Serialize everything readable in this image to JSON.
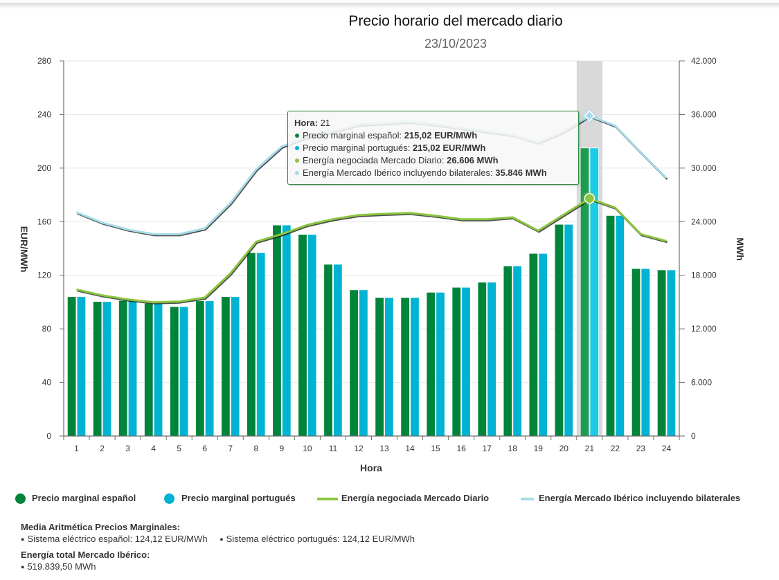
{
  "chart_data": {
    "type": "bar",
    "title": "Precio horario del mercado diario",
    "subtitle": "23/10/2023",
    "xlabel": "Hora",
    "ylabel": "EUR/MWh",
    "y2label": "MWh",
    "ylim": [
      0,
      280
    ],
    "y2lim": [
      0,
      42000
    ],
    "yticks": [
      0,
      40,
      80,
      120,
      160,
      200,
      240,
      280
    ],
    "ytick_labels": [
      "0",
      "40",
      "80",
      "120",
      "160",
      "200",
      "240",
      "280"
    ],
    "y2ticks": [
      0,
      6000,
      12000,
      18000,
      24000,
      30000,
      36000,
      42000
    ],
    "y2tick_labels": [
      "0",
      "6.000",
      "12.000",
      "18.000",
      "24.000",
      "30.000",
      "36.000",
      "42.000"
    ],
    "grid": true,
    "legend_position": "bottom-left",
    "highlighted_category": "21",
    "categories": [
      "1",
      "2",
      "3",
      "4",
      "5",
      "6",
      "7",
      "8",
      "9",
      "10",
      "11",
      "12",
      "13",
      "14",
      "15",
      "16",
      "17",
      "18",
      "19",
      "20",
      "21",
      "22",
      "23",
      "24"
    ],
    "series": [
      {
        "name": "Precio marginal español",
        "type": "bar",
        "axis": "left",
        "unit": "EUR/MWh",
        "color": "#00843a",
        "highlight_color": "#1d9b4f",
        "values": [
          104.0,
          100.4,
          101.2,
          99.1,
          96.6,
          100.9,
          104.0,
          136.9,
          157.5,
          150.5,
          128.2,
          109.1,
          103.4,
          103.4,
          107.3,
          111.0,
          114.8,
          127.0,
          136.3,
          158.0,
          215.02,
          164.6,
          125.0,
          124.0
        ]
      },
      {
        "name": "Precio marginal portugués",
        "type": "bar",
        "axis": "left",
        "unit": "EUR/MWh",
        "color": "#00b3d3",
        "highlight_color": "#1ccbe8",
        "values": [
          104.0,
          100.4,
          101.2,
          99.1,
          96.6,
          100.9,
          104.0,
          136.9,
          157.5,
          150.5,
          128.2,
          109.1,
          103.4,
          103.4,
          107.3,
          111.0,
          114.8,
          127.0,
          136.3,
          158.0,
          215.02,
          164.6,
          125.0,
          124.0
        ]
      },
      {
        "name": "Energía negociada Mercado Diario",
        "type": "line",
        "axis": "right",
        "unit": "MWh",
        "color": "#8bc53f",
        "values": [
          16404,
          15754,
          15289,
          14979,
          15057,
          15498,
          18210,
          21751,
          22604,
          23634,
          24278,
          24743,
          24874,
          24976,
          24666,
          24278,
          24278,
          24488,
          22991,
          24797,
          26606,
          25572,
          22604,
          21829
        ]
      },
      {
        "name": "Energía Mercado Ibérico incluyendo bilaterales",
        "type": "line",
        "axis": "right",
        "unit": "MWh",
        "color": "#a7dbe8",
        "values": [
          25053,
          23890,
          23115,
          22600,
          22600,
          23247,
          26093,
          29834,
          32414,
          33476,
          34096,
          34871,
          35026,
          35181,
          34871,
          34483,
          34096,
          33708,
          32854,
          34096,
          35846,
          34739,
          31771,
          28881
        ]
      }
    ]
  },
  "tooltip": {
    "header_label": "Hora:",
    "header_value": "21",
    "rows": [
      {
        "label": "Precio marginal español:",
        "value": "215,02 EUR/MWh",
        "color": "#00843a"
      },
      {
        "label": "Precio marginal portugués:",
        "value": "215,02 EUR/MWh",
        "color": "#00b3d3"
      },
      {
        "label": "Energía negociada Mercado Diario:",
        "value": "26.606 MWh",
        "color": "#8bc53f"
      },
      {
        "label": "Energía Mercado Ibérico incluyendo bilaterales:",
        "value": "35.846 MWh",
        "color": "#a7dbe8"
      }
    ]
  },
  "legend": [
    {
      "label": "Precio marginal español",
      "marker": "circle",
      "color": "#00843a"
    },
    {
      "label": "Precio marginal portugués",
      "marker": "circle",
      "color": "#00b3d3"
    },
    {
      "label": "Energía negociada Mercado Diario",
      "marker": "line",
      "color": "#8bc53f"
    },
    {
      "label": "Energía Mercado Ibérico incluyendo bilaterales",
      "marker": "line",
      "color": "#a7dbe8"
    }
  ],
  "summary": {
    "avg_title": "Media Aritmética Precios Marginales:",
    "avg_items": [
      "Sistema eléctrico español: 124,12 EUR/MWh",
      "Sistema eléctrico portugués: 124,12 EUR/MWh"
    ],
    "total_title": "Energía total Mercado Ibérico:",
    "total_items": [
      "519.839,50 MWh"
    ]
  }
}
